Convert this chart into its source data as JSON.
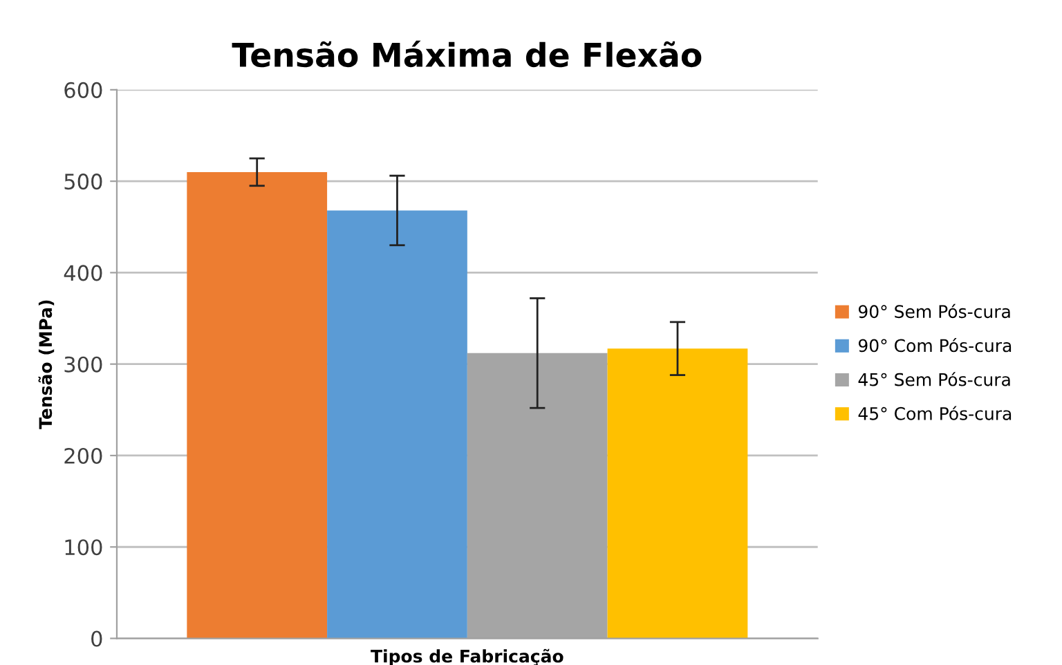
{
  "chart_data": {
    "type": "bar",
    "title": "Tensão Máxima de Flexão",
    "xlabel": "Tipos de Fabricação",
    "ylabel": "Tensão (MPa)",
    "categories": [
      null
    ],
    "series": [
      {
        "name": "90° Sem Pós-cura",
        "color": "#ed7d31",
        "values": [
          510
        ],
        "errors": [
          15
        ]
      },
      {
        "name": "90° Com Pós-cura",
        "color": "#5b9bd5",
        "values": [
          468
        ],
        "errors": [
          38
        ]
      },
      {
        "name": "45° Sem Pós-cura",
        "color": "#a5a5a5",
        "values": [
          312
        ],
        "errors": [
          60
        ]
      },
      {
        "name": "45° Com Pós-cura",
        "color": "#ffc000",
        "values": [
          317
        ],
        "errors": [
          29
        ]
      }
    ],
    "ylim": [
      0,
      600
    ],
    "yticks": [
      0,
      100,
      200,
      300,
      400,
      500,
      600
    ],
    "grid": "y",
    "legend": "right"
  }
}
